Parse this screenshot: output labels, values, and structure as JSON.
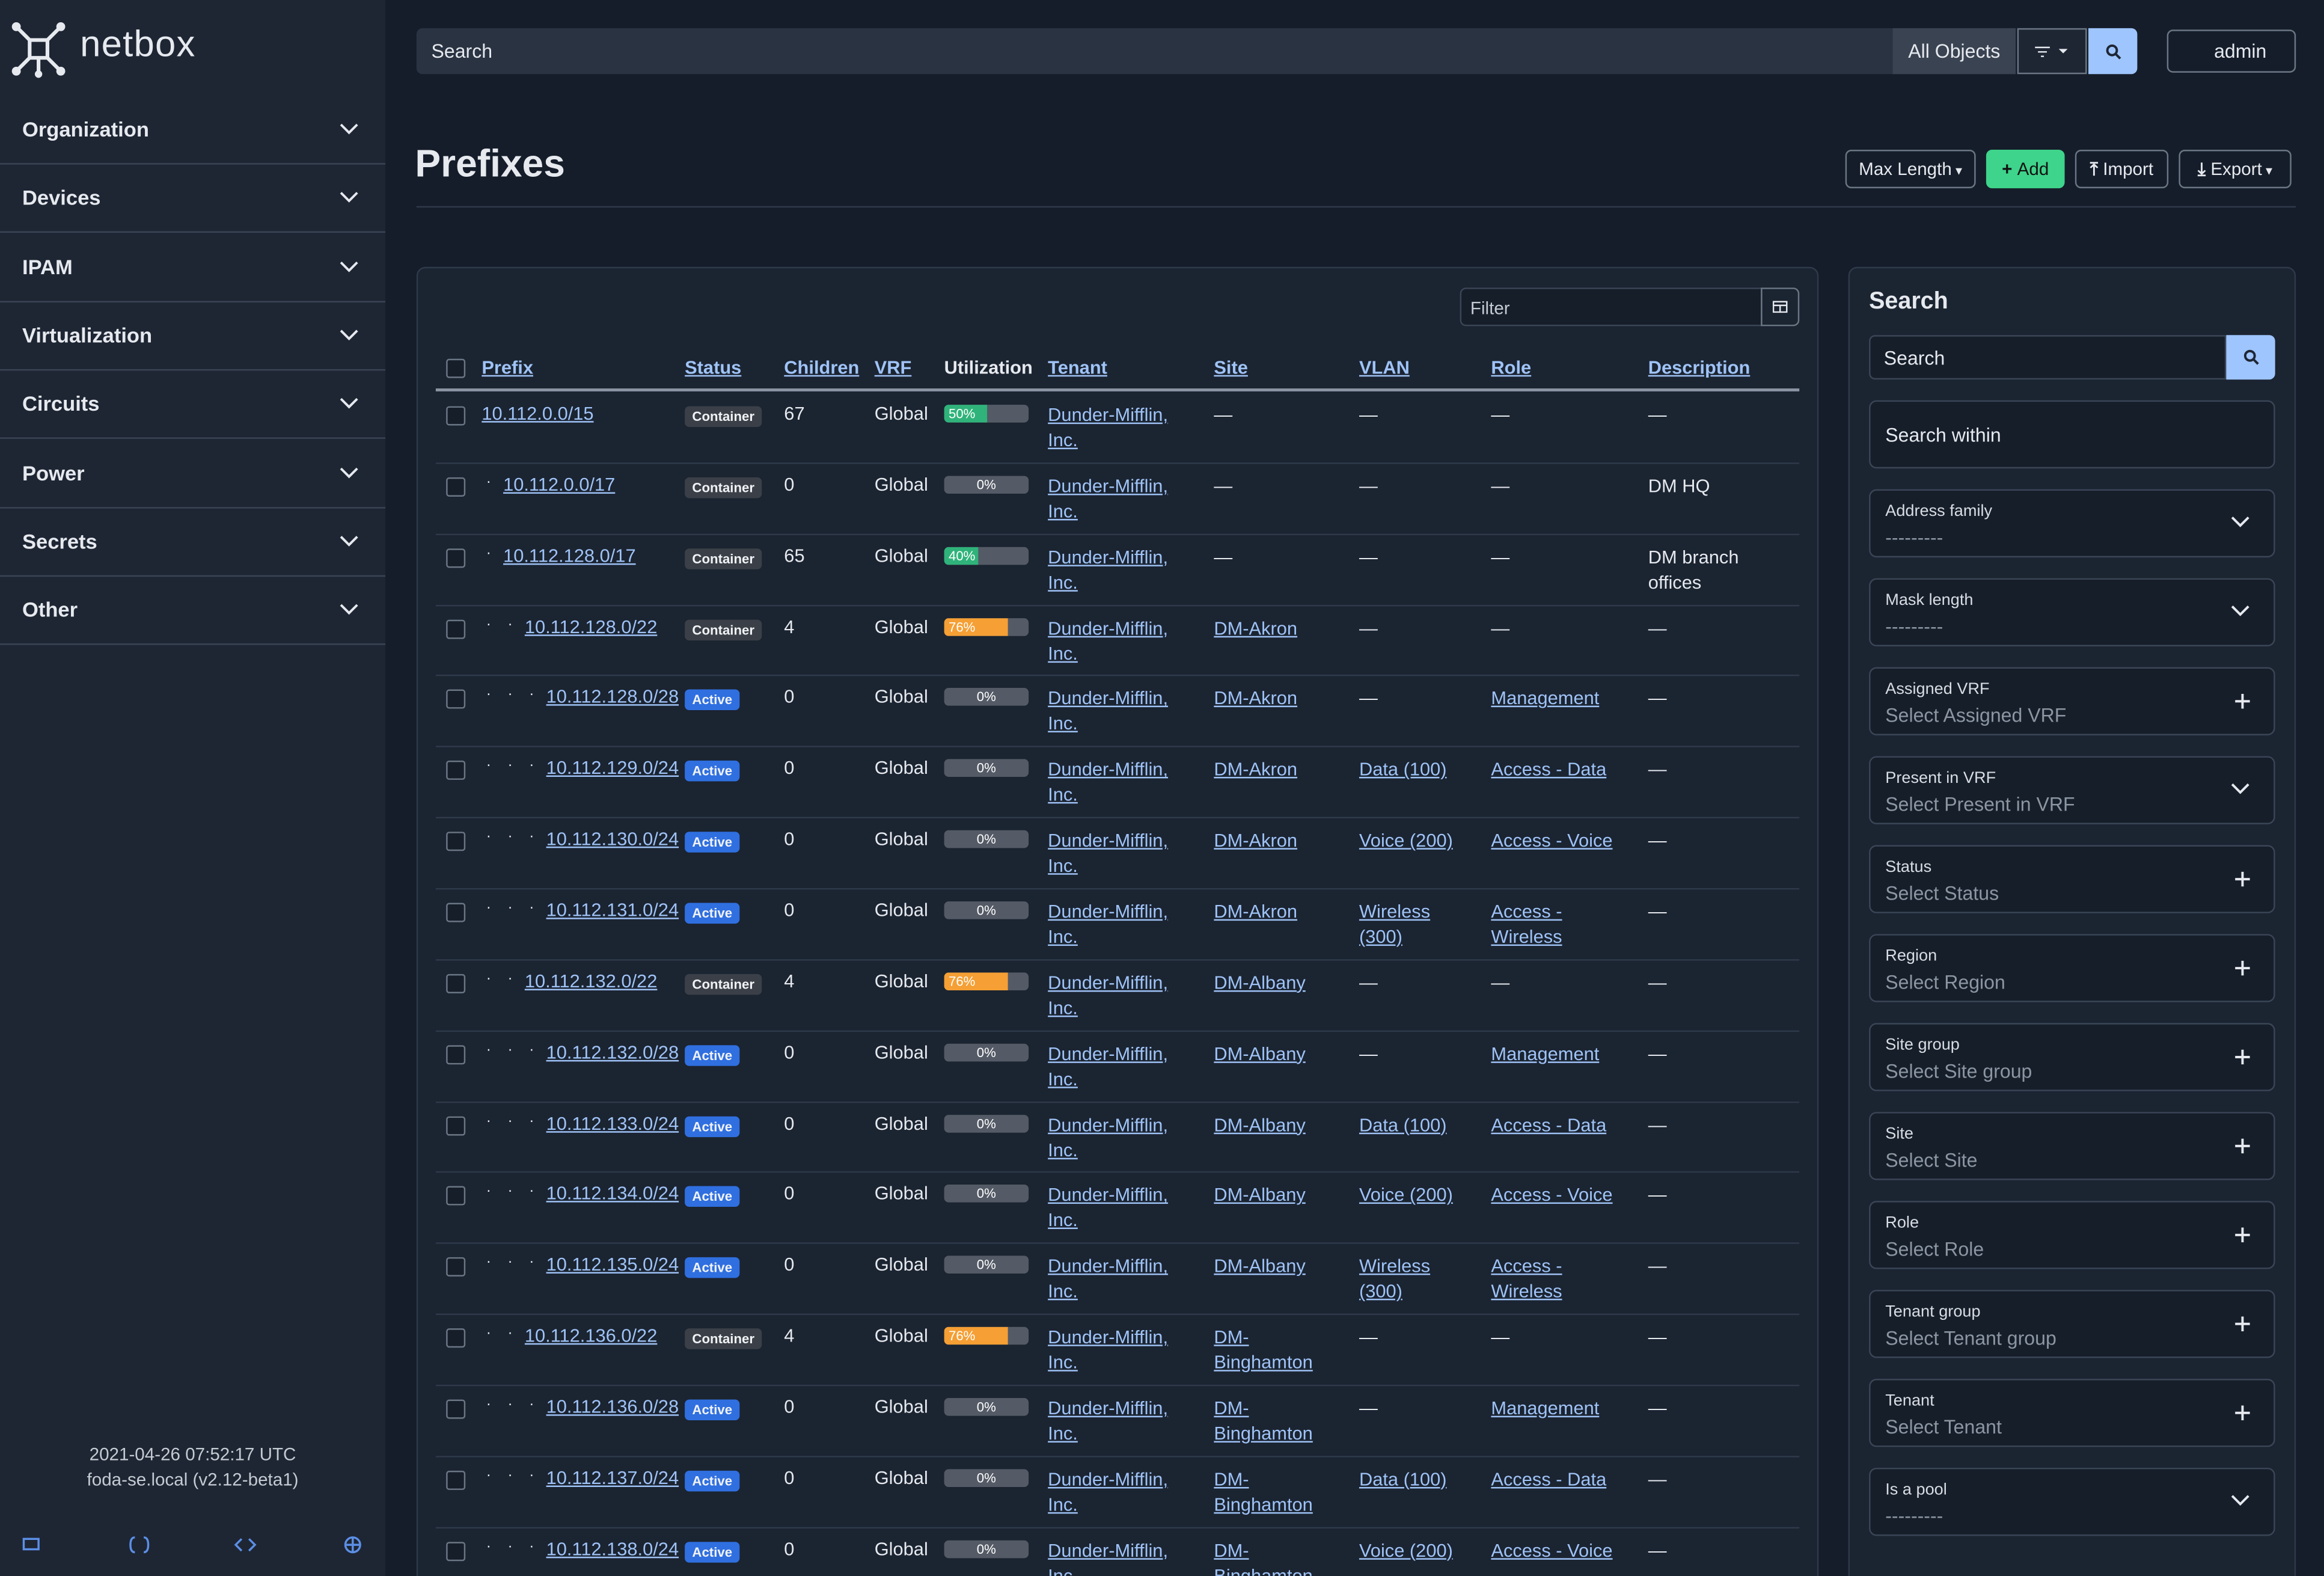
{
  "sidebar": {
    "logo": "netbox",
    "menu": [
      "Organization",
      "Devices",
      "IPAM",
      "Virtualization",
      "Circuits",
      "Power",
      "Secrets",
      "Other"
    ],
    "footer": {
      "time": "2021-04-26 07:52:17 UTC",
      "host": "foda-se.local (v2.12-beta1)"
    }
  },
  "topbar": {
    "search_placeholder": "Search",
    "scope": "All Objects",
    "user": "admin"
  },
  "page": {
    "title": "Prefixes",
    "buttons": [
      "Max Length",
      "Add",
      "Import",
      "Export"
    ]
  },
  "table": {
    "filter_placeholder": "Filter",
    "columns": [
      "Prefix",
      "Status",
      "Children",
      "VRF",
      "Utilization",
      "Tenant",
      "Site",
      "VLAN",
      "Role",
      "Description"
    ],
    "rows": [
      {
        "prefix": "10.112.0.0/15",
        "depth": 0,
        "status": "Container",
        "children": 67,
        "vrf": "Global",
        "utilization": "50%",
        "tenant": "Dunder-Mifflin, Inc.",
        "site": "—",
        "vlan": "—",
        "role": "—",
        "description": "—"
      },
      {
        "prefix": "10.112.0.0/17",
        "depth": 1,
        "status": "Container",
        "children": 0,
        "vrf": "Global",
        "utilization": "0%",
        "tenant": "Dunder-Mifflin, Inc.",
        "site": "—",
        "vlan": "—",
        "role": "—",
        "description": "DM HQ"
      },
      {
        "prefix": "10.112.128.0/17",
        "depth": 1,
        "status": "Container",
        "children": 65,
        "vrf": "Global",
        "utilization": "40%",
        "tenant": "Dunder-Mifflin, Inc.",
        "site": "—",
        "vlan": "—",
        "role": "—",
        "description": "DM branch offices"
      },
      {
        "prefix": "10.112.128.0/22",
        "depth": 2,
        "status": "Container",
        "children": 4,
        "vrf": "Global",
        "utilization": "76%",
        "tenant": "Dunder-Mifflin, Inc.",
        "site": "DM-Akron",
        "vlan": "—",
        "role": "—",
        "description": "—"
      },
      {
        "prefix": "10.112.128.0/28",
        "depth": 3,
        "status": "Active",
        "children": 0,
        "vrf": "Global",
        "utilization": "0%",
        "tenant": "Dunder-Mifflin, Inc.",
        "site": "DM-Akron",
        "vlan": "—",
        "role": "Management",
        "description": "—"
      },
      {
        "prefix": "10.112.129.0/24",
        "depth": 3,
        "status": "Active",
        "children": 0,
        "vrf": "Global",
        "utilization": "0%",
        "tenant": "Dunder-Mifflin, Inc.",
        "site": "DM-Akron",
        "vlan": "Data (100)",
        "role": "Access - Data",
        "description": "—"
      },
      {
        "prefix": "10.112.130.0/24",
        "depth": 3,
        "status": "Active",
        "children": 0,
        "vrf": "Global",
        "utilization": "0%",
        "tenant": "Dunder-Mifflin, Inc.",
        "site": "DM-Akron",
        "vlan": "Voice (200)",
        "role": "Access - Voice",
        "description": "—"
      },
      {
        "prefix": "10.112.131.0/24",
        "depth": 3,
        "status": "Active",
        "children": 0,
        "vrf": "Global",
        "utilization": "0%",
        "tenant": "Dunder-Mifflin, Inc.",
        "site": "DM-Akron",
        "vlan": "Wireless (300)",
        "role": "Access - Wireless",
        "description": "—"
      },
      {
        "prefix": "10.112.132.0/22",
        "depth": 2,
        "status": "Container",
        "children": 4,
        "vrf": "Global",
        "utilization": "76%",
        "tenant": "Dunder-Mifflin, Inc.",
        "site": "DM-Albany",
        "vlan": "—",
        "role": "—",
        "description": "—"
      },
      {
        "prefix": "10.112.132.0/28",
        "depth": 3,
        "status": "Active",
        "children": 0,
        "vrf": "Global",
        "utilization": "0%",
        "tenant": "Dunder-Mifflin, Inc.",
        "site": "DM-Albany",
        "vlan": "—",
        "role": "Management",
        "description": "—"
      },
      {
        "prefix": "10.112.133.0/24",
        "depth": 3,
        "status": "Active",
        "children": 0,
        "vrf": "Global",
        "utilization": "0%",
        "tenant": "Dunder-Mifflin, Inc.",
        "site": "DM-Albany",
        "vlan": "Data (100)",
        "role": "Access - Data",
        "description": "—"
      },
      {
        "prefix": "10.112.134.0/24",
        "depth": 3,
        "status": "Active",
        "children": 0,
        "vrf": "Global",
        "utilization": "0%",
        "tenant": "Dunder-Mifflin, Inc.",
        "site": "DM-Albany",
        "vlan": "Voice (200)",
        "role": "Access - Voice",
        "description": "—"
      },
      {
        "prefix": "10.112.135.0/24",
        "depth": 3,
        "status": "Active",
        "children": 0,
        "vrf": "Global",
        "utilization": "0%",
        "tenant": "Dunder-Mifflin, Inc.",
        "site": "DM-Albany",
        "vlan": "Wireless (300)",
        "role": "Access - Wireless",
        "description": "—"
      },
      {
        "prefix": "10.112.136.0/22",
        "depth": 2,
        "status": "Container",
        "children": 4,
        "vrf": "Global",
        "utilization": "76%",
        "tenant": "Dunder-Mifflin, Inc.",
        "site": "DM-Binghamton",
        "vlan": "—",
        "role": "—",
        "description": "—"
      },
      {
        "prefix": "10.112.136.0/28",
        "depth": 3,
        "status": "Active",
        "children": 0,
        "vrf": "Global",
        "utilization": "0%",
        "tenant": "Dunder-Mifflin, Inc.",
        "site": "DM-Binghamton",
        "vlan": "—",
        "role": "Management",
        "description": "—"
      },
      {
        "prefix": "10.112.137.0/24",
        "depth": 3,
        "status": "Active",
        "children": 0,
        "vrf": "Global",
        "utilization": "0%",
        "tenant": "Dunder-Mifflin, Inc.",
        "site": "DM-Binghamton",
        "vlan": "Data (100)",
        "role": "Access - Data",
        "description": "—"
      },
      {
        "prefix": "10.112.138.0/24",
        "depth": 3,
        "status": "Active",
        "children": 0,
        "vrf": "Global",
        "utilization": "0%",
        "tenant": "Dunder-Mifflin, Inc.",
        "site": "DM-Binghamton",
        "vlan": "Voice (200)",
        "role": "Access - Voice",
        "description": "—"
      }
    ]
  },
  "search_panel": {
    "title": "Search",
    "search_placeholder": "Search",
    "search_within": "Search within",
    "fields": [
      {
        "label": "Address family",
        "placeholder": "---------"
      },
      {
        "label": "Mask length",
        "placeholder": "---------"
      },
      {
        "label": "Assigned VRF",
        "placeholder": "Select Assigned VRF"
      },
      {
        "label": "Present in VRF",
        "placeholder": "Select Present in VRF"
      },
      {
        "label": "Status",
        "placeholder": "Select Status"
      },
      {
        "label": "Region",
        "placeholder": "Select Region"
      },
      {
        "label": "Site group",
        "placeholder": "Select Site group"
      },
      {
        "label": "Site",
        "placeholder": "Select Site"
      },
      {
        "label": "Role",
        "placeholder": "Select Role"
      },
      {
        "label": "Tenant group",
        "placeholder": "Select Tenant group"
      },
      {
        "label": "Tenant",
        "placeholder": "Select Tenant"
      },
      {
        "label": "Is a pool",
        "placeholder": "---------"
      }
    ]
  }
}
